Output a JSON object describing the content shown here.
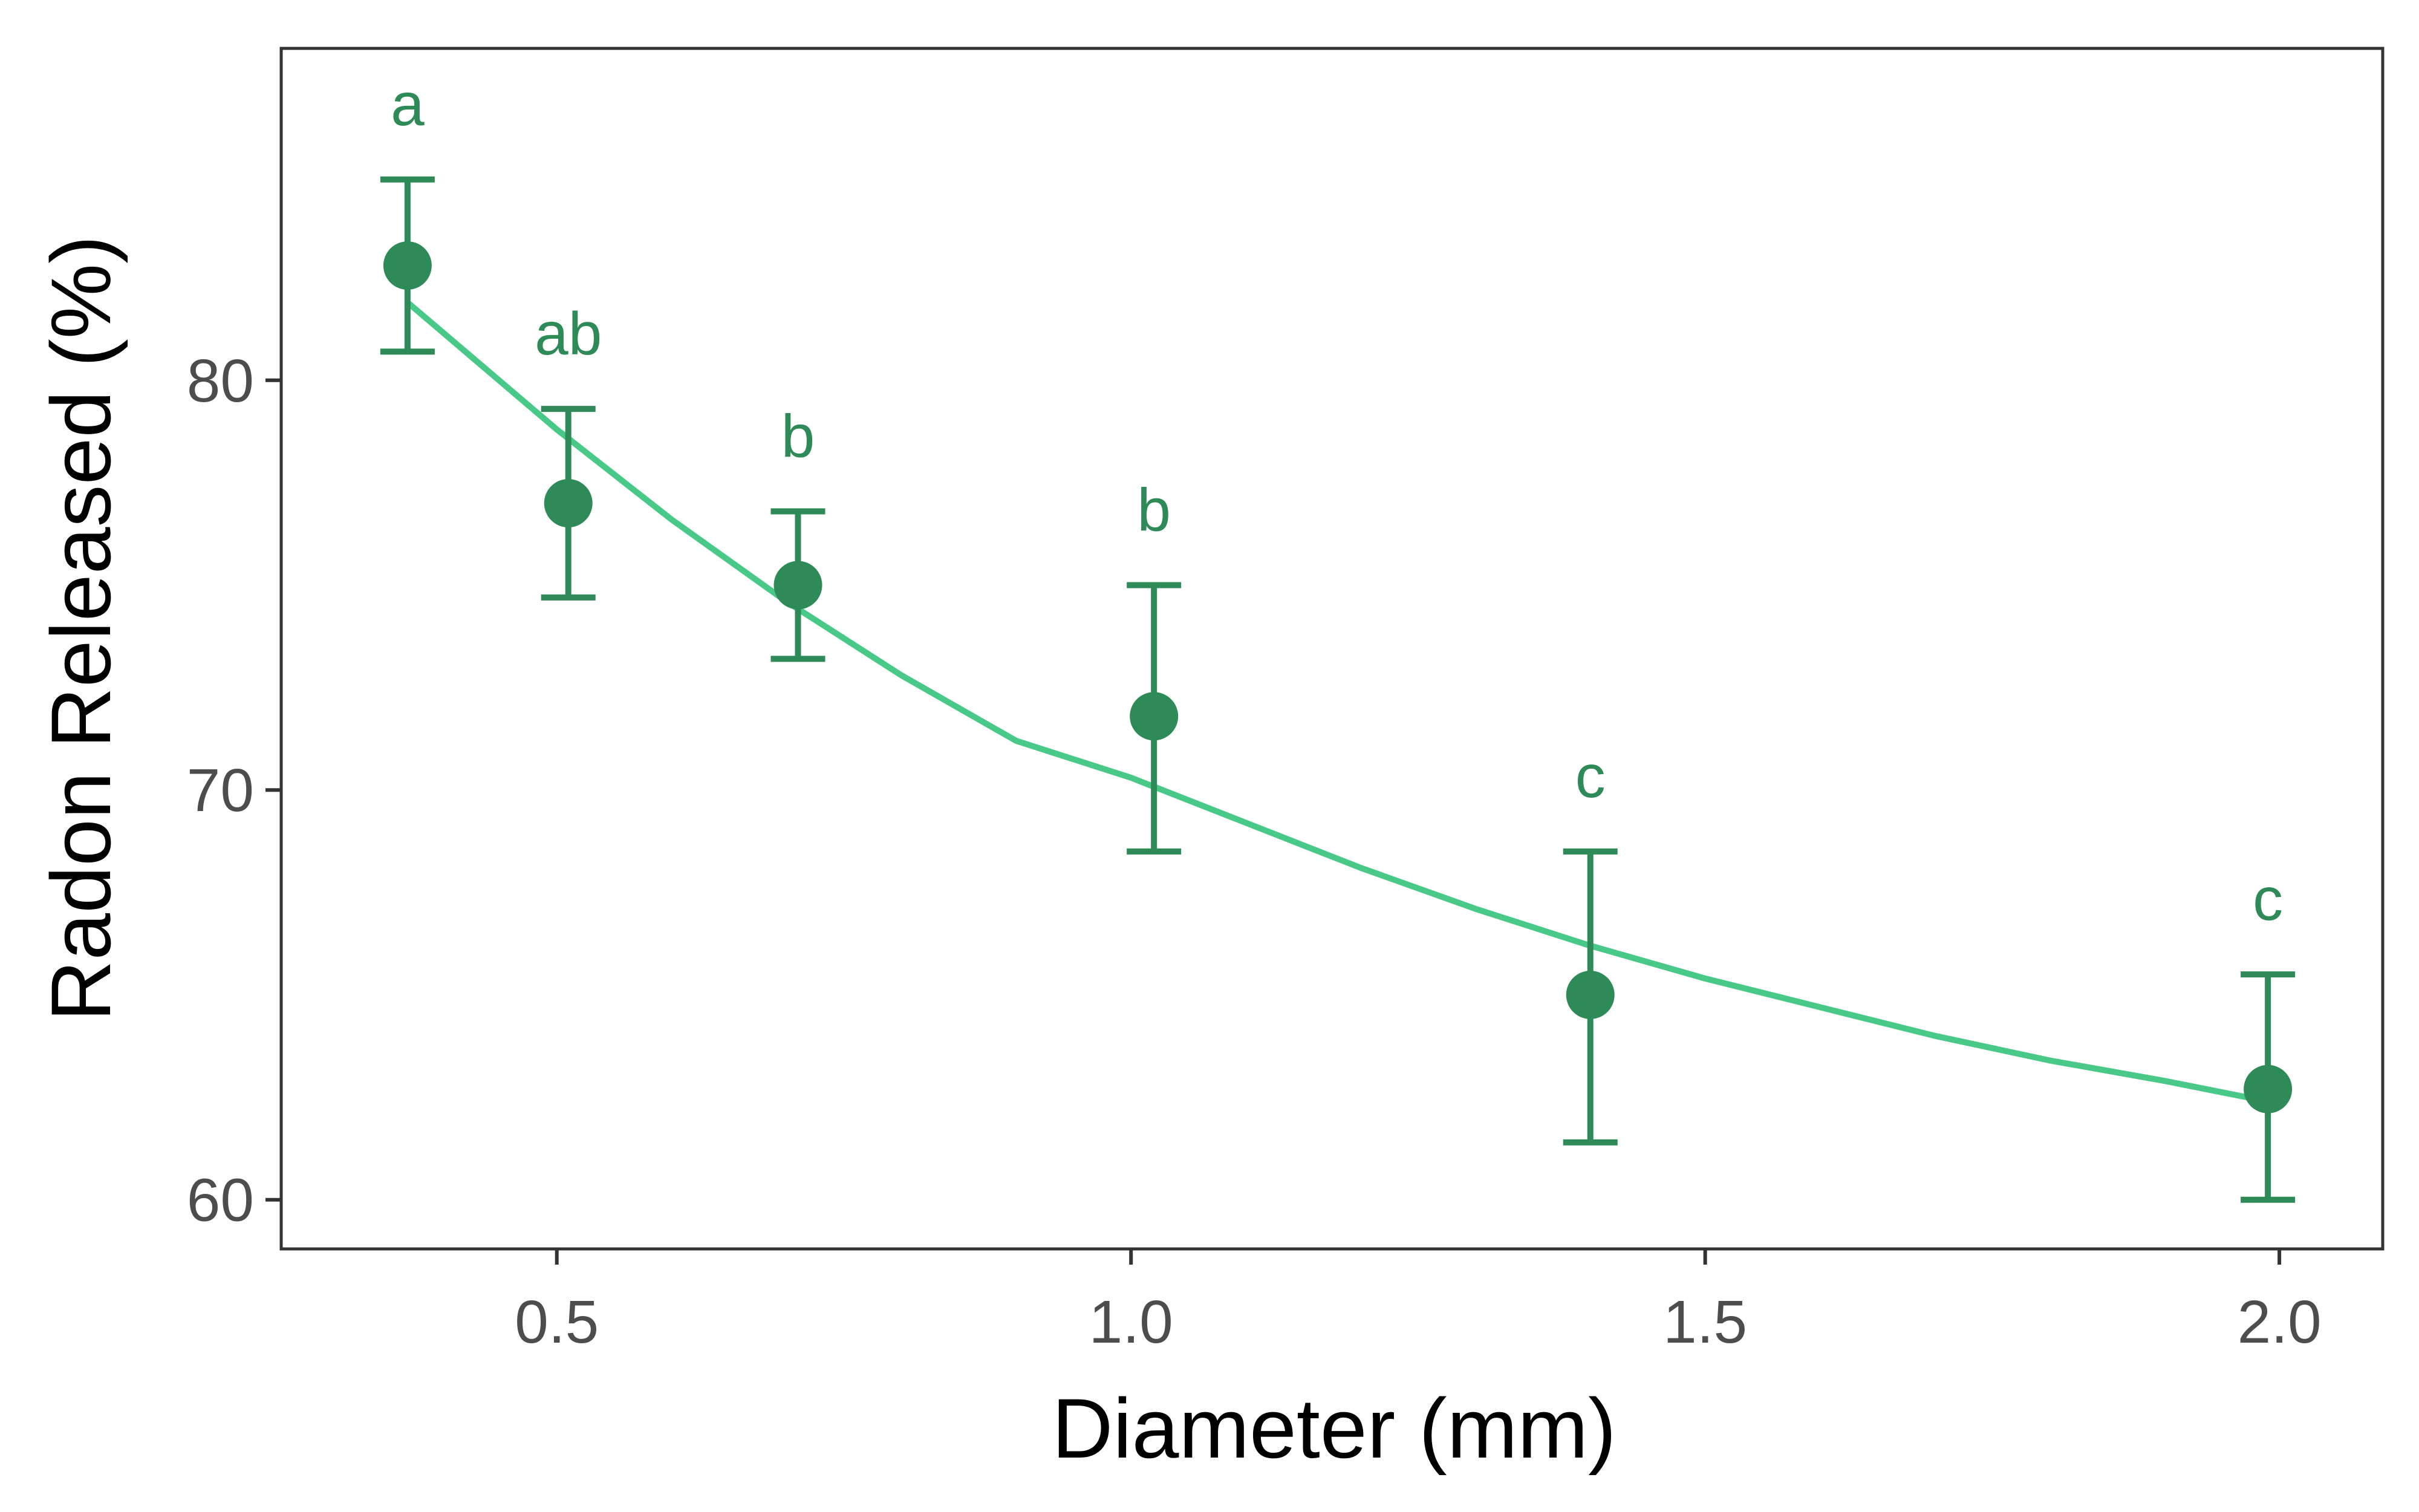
{
  "chart_data": {
    "type": "scatter",
    "title": "",
    "xlabel": "Diameter (mm)",
    "ylabel": "Radon Released (%)",
    "xlim": [
      0.26,
      2.09
    ],
    "ylim": [
      58.8,
      88.1
    ],
    "x_ticks": [
      0.5,
      1.0,
      1.5,
      2.0
    ],
    "x_tick_labels": [
      "0.5",
      "1.0",
      "1.5",
      "2.0"
    ],
    "y_ticks": [
      60,
      70,
      80
    ],
    "y_tick_labels": [
      "60",
      "70",
      "80"
    ],
    "grid": false,
    "legend": "none",
    "series": [
      {
        "points": [
          {
            "x": 0.37,
            "y": 82.8,
            "err_low": 80.7,
            "err_high": 84.9,
            "group": "a"
          },
          {
            "x": 0.51,
            "y": 77.0,
            "err_low": 74.7,
            "err_high": 79.3,
            "group": "ab"
          },
          {
            "x": 0.71,
            "y": 75.0,
            "err_low": 73.2,
            "err_high": 76.8,
            "group": "b"
          },
          {
            "x": 1.02,
            "y": 71.8,
            "err_low": 68.5,
            "err_high": 75.0,
            "group": "b"
          },
          {
            "x": 1.4,
            "y": 65.0,
            "err_low": 61.4,
            "err_high": 68.5,
            "group": "c"
          },
          {
            "x": 1.99,
            "y": 62.7,
            "err_low": 60.0,
            "err_high": 65.5,
            "group": "c"
          }
        ]
      }
    ],
    "fit_curve": {
      "x": [
        0.37,
        0.5,
        0.6,
        0.7,
        0.8,
        0.9,
        1.0,
        1.1,
        1.2,
        1.3,
        1.4,
        1.5,
        1.6,
        1.7,
        1.8,
        1.9,
        1.99
      ],
      "y": [
        81.9,
        78.8,
        76.6,
        74.6,
        72.8,
        71.2,
        70.3,
        69.2,
        68.1,
        67.1,
        66.2,
        65.4,
        64.7,
        64.0,
        63.4,
        62.9,
        62.4
      ]
    },
    "colors": {
      "points": "#2e8b57",
      "fit_line": "#48c987",
      "axis": "#333333",
      "tick_text": "#4d4d4d",
      "title_text": "#000000"
    }
  }
}
